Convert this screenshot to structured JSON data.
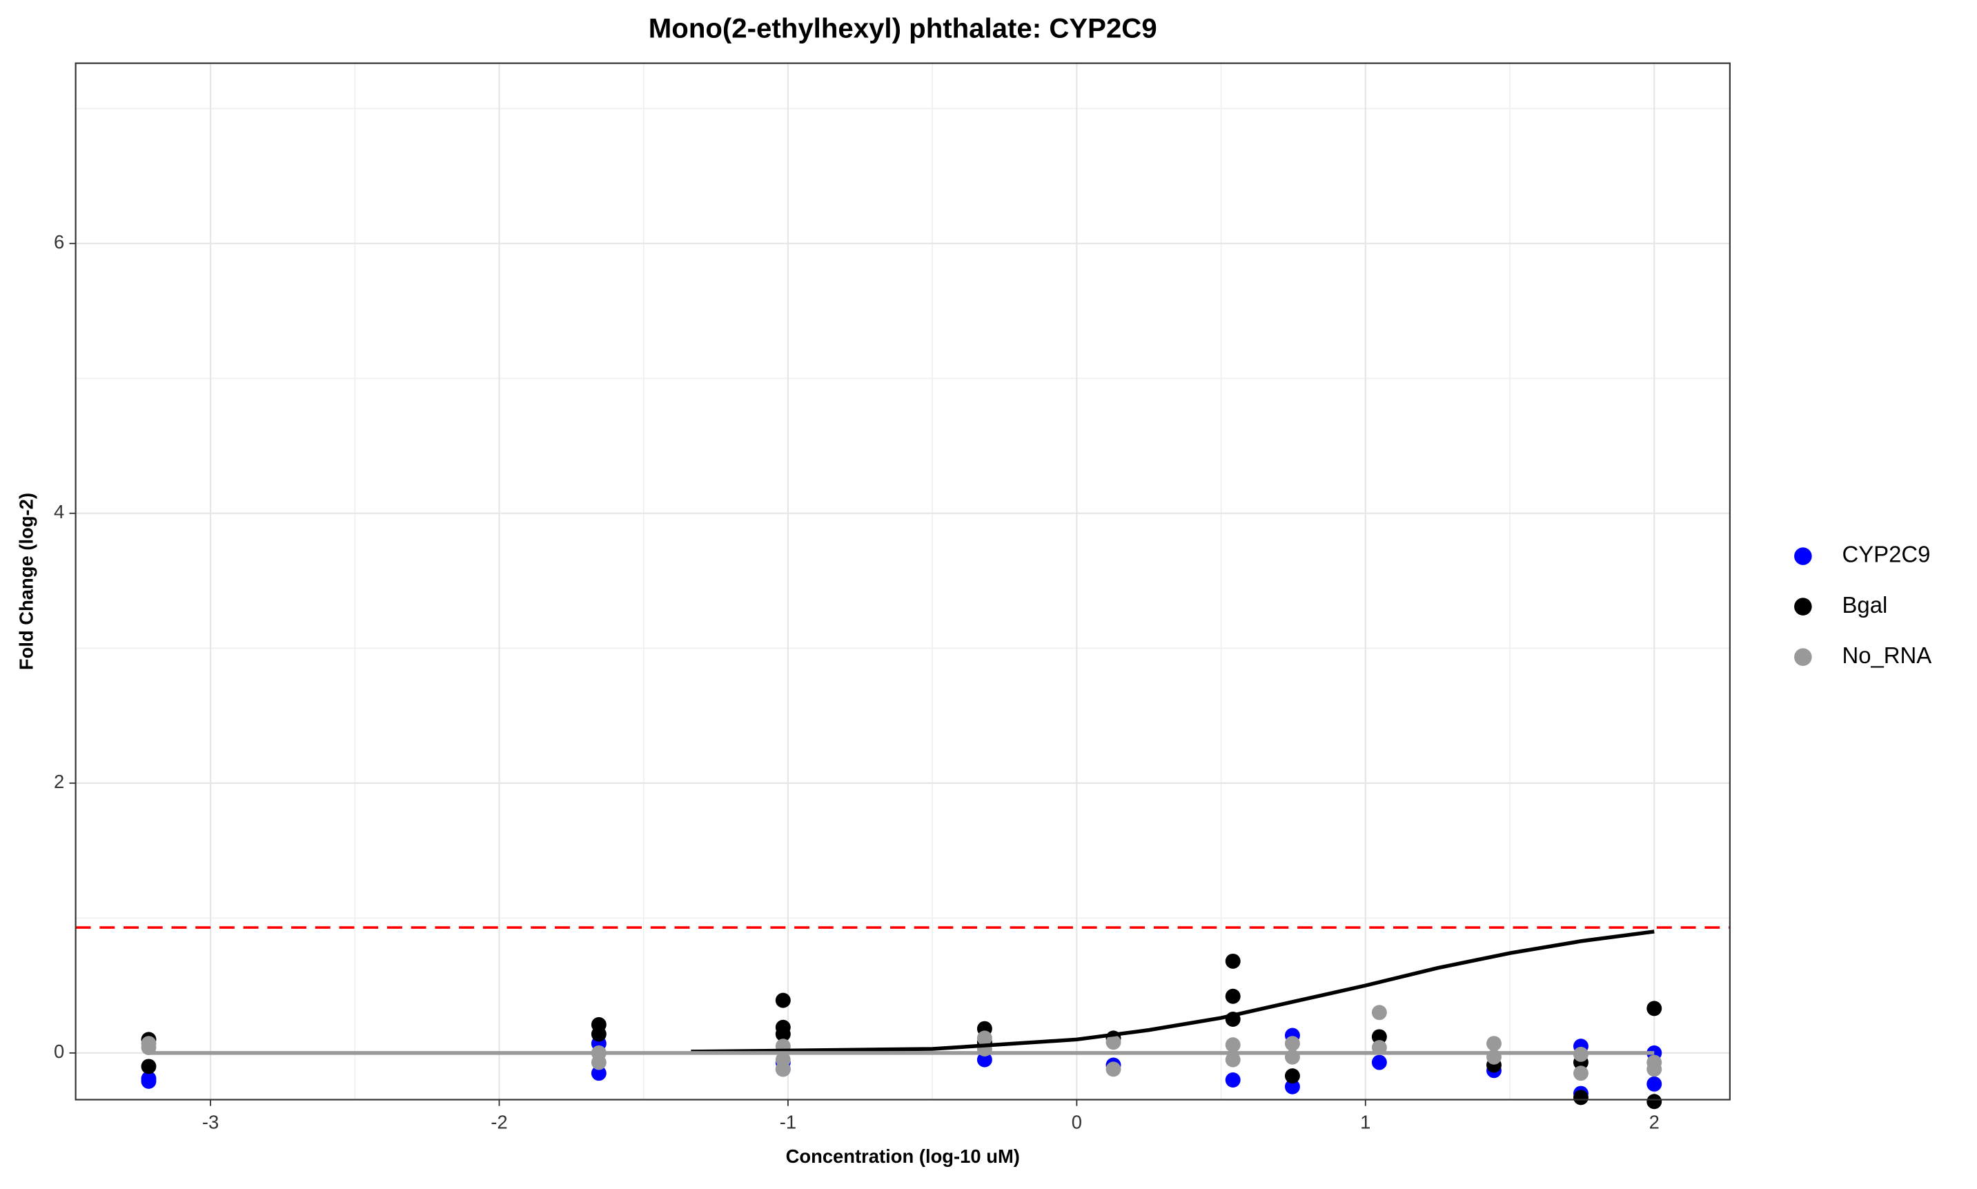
{
  "chart_data": {
    "type": "scatter",
    "title": "Mono(2-ethylhexyl) phthalate: CYP2C9",
    "x_label": "Concentration (log-10 uM)",
    "y_label": "Fold Change (log-2)",
    "xlim": [
      -3.467,
      2.262
    ],
    "ylim": [
      -0.346,
      7.336
    ],
    "xticks": [
      -3,
      -2,
      -1,
      0,
      1,
      2
    ],
    "yticks": [
      0,
      2,
      4,
      6
    ],
    "grid": true,
    "legend": "right",
    "series": [
      {
        "name": "CYP2C9",
        "color": "#0000ff",
        "x": [
          -3.214,
          -3.214,
          -1.655,
          -1.655,
          -1.017,
          -1.017,
          -0.319,
          0.127,
          0.541,
          0.747,
          0.747,
          1.048,
          1.445,
          1.746,
          1.746,
          2,
          2
        ],
        "values": [
          -0.19,
          -0.21,
          0.07,
          -0.15,
          -0.12,
          -0.07,
          -0.05,
          -0.09,
          -0.2,
          0.13,
          -0.25,
          -0.07,
          -0.13,
          0.05,
          -0.3,
          0,
          -0.23
        ]
      },
      {
        "name": "Bgal",
        "color": "#000000",
        "x": [
          -3.214,
          -3.214,
          -1.655,
          -1.655,
          -1.017,
          -1.017,
          -1.017,
          -0.319,
          -0.319,
          0.127,
          0.541,
          0.541,
          0.541,
          0.747,
          1.048,
          1.445,
          1.746,
          1.746,
          2,
          2
        ],
        "values": [
          0.1,
          -0.1,
          0.21,
          0.14,
          0.39,
          0.19,
          0.14,
          0.18,
          0.08,
          0.11,
          0.68,
          0.42,
          0.25,
          -0.17,
          0.12,
          -0.09,
          -0.07,
          -0.33,
          0.33,
          -0.36
        ]
      },
      {
        "name": "No_RNA",
        "color": "#999999",
        "x": [
          -3.214,
          -3.214,
          -1.655,
          -1.655,
          -1.017,
          -1.017,
          -1.017,
          -0.319,
          -0.319,
          0.127,
          0.127,
          0.541,
          0.541,
          0.747,
          0.747,
          1.048,
          1.048,
          1.445,
          1.445,
          1.746,
          1.746,
          2,
          2
        ],
        "values": [
          0.07,
          0.04,
          0,
          -0.07,
          0.05,
          -0.05,
          -0.12,
          0.11,
          0.03,
          0.08,
          -0.12,
          0.06,
          -0.05,
          0.07,
          -0.03,
          0.3,
          0.04,
          0.07,
          -0.03,
          -0.01,
          -0.15,
          -0.07,
          -0.12
        ]
      }
    ],
    "fit_lines": [
      {
        "color": "#000000",
        "x": [
          -1.336,
          -0.5,
          0,
          0.25,
          0.5,
          0.75,
          1,
          1.25,
          1.5,
          1.75,
          2
        ],
        "values": [
          0.01,
          0.03,
          0.1,
          0.17,
          0.26,
          0.38,
          0.5,
          0.63,
          0.74,
          0.83,
          0.9
        ]
      },
      {
        "color": "#999999",
        "x": [
          -3.214,
          2
        ],
        "values": [
          0,
          0
        ]
      }
    ],
    "threshold": {
      "value": 0.93,
      "color": "#ff0000"
    }
  }
}
